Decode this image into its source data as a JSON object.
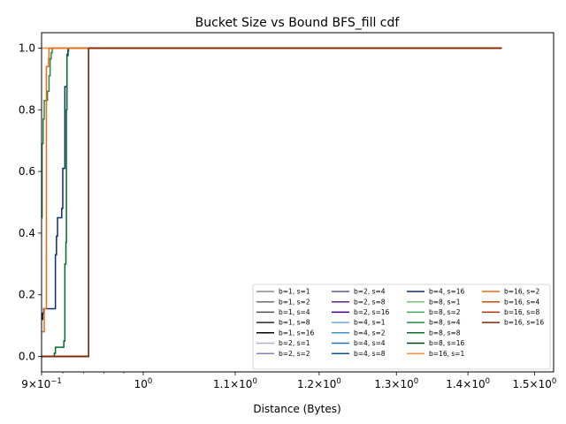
{
  "chart_data": {
    "type": "line",
    "title": "Bucket Size vs Bound BFS_fill cdf",
    "xlabel": "Distance (Bytes)",
    "ylabel": "",
    "x_scale": "log",
    "xlim": [
      0.9,
      1.53
    ],
    "ylim": [
      -0.05,
      1.05
    ],
    "grid": false,
    "legend_placement": "lower-right",
    "legend_columns": 4,
    "x_ticks": [
      {
        "value": 0.9,
        "base": "9",
        "times": "×",
        "power": "10",
        "exp": "−1"
      },
      {
        "value": 1.0,
        "base": "",
        "times": "",
        "power": "10",
        "exp": "0"
      },
      {
        "value": 1.1,
        "base": "1.1",
        "times": "×",
        "power": "10",
        "exp": "0"
      },
      {
        "value": 1.2,
        "base": "1.2",
        "times": "×",
        "power": "10",
        "exp": "0"
      },
      {
        "value": 1.3,
        "base": "1.3",
        "times": "×",
        "power": "10",
        "exp": "0"
      },
      {
        "value": 1.4,
        "base": "1.4",
        "times": "×",
        "power": "10",
        "exp": "0"
      },
      {
        "value": 1.5,
        "base": "1.5",
        "times": "×",
        "power": "10",
        "exp": "0"
      }
    ],
    "y_ticks": [
      {
        "value": 0.0,
        "label": "0.0"
      },
      {
        "value": 0.2,
        "label": "0.2"
      },
      {
        "value": 0.4,
        "label": "0.4"
      },
      {
        "value": 0.6,
        "label": "0.6"
      },
      {
        "value": 0.8,
        "label": "0.8"
      },
      {
        "value": 1.0,
        "label": "1.0"
      }
    ],
    "series": [
      {
        "name": "b=1, s=1",
        "color": "#8c8c8c",
        "x": [
          0.9,
          0.945,
          0.945,
          1.45
        ],
        "y": [
          0,
          0,
          1,
          1
        ]
      },
      {
        "name": "b=1, s=2",
        "color": "#6e6e6e",
        "x": [
          0.9,
          0.945,
          0.945,
          1.45
        ],
        "y": [
          0,
          0,
          1,
          1
        ]
      },
      {
        "name": "b=1, s=4",
        "color": "#4f4f4f",
        "x": [
          0.9,
          0.945,
          0.945,
          1.45
        ],
        "y": [
          0,
          0,
          1,
          1
        ]
      },
      {
        "name": "b=1, s=8",
        "color": "#262626",
        "x": [
          0.9,
          0.945,
          0.945,
          1.45
        ],
        "y": [
          0,
          0,
          1,
          1
        ]
      },
      {
        "name": "b=1, s=16",
        "color": "#000000",
        "x": [
          0.9,
          0.945,
          0.945,
          1.45
        ],
        "y": [
          0,
          0,
          1,
          1
        ]
      },
      {
        "name": "b=2, s=1",
        "color": "#b2abd2",
        "x": [
          0.9,
          0.945,
          0.945,
          1.45
        ],
        "y": [
          0,
          0,
          1,
          1
        ]
      },
      {
        "name": "b=2, s=2",
        "color": "#8e7cc3",
        "x": [
          0.9,
          0.945,
          0.945,
          1.45
        ],
        "y": [
          0,
          0,
          1,
          1
        ]
      },
      {
        "name": "b=2, s=4",
        "color": "#6a51a3",
        "x": [
          0.9,
          0.945,
          0.945,
          1.45
        ],
        "y": [
          0,
          0,
          1,
          1
        ]
      },
      {
        "name": "b=2, s=8",
        "color": "#54278f",
        "x": [
          0.9,
          0.945,
          0.945,
          1.45
        ],
        "y": [
          0,
          0,
          1,
          1
        ]
      },
      {
        "name": "b=2, s=16",
        "color": "#3f007d",
        "x": [
          0.9,
          0.945,
          0.945,
          1.45
        ],
        "y": [
          0,
          0,
          1,
          1
        ]
      },
      {
        "name": "b=4, s=1",
        "color": "#6baed6",
        "x": [
          0.9,
          0.945,
          0.945,
          1.45
        ],
        "y": [
          0,
          0,
          1,
          1
        ]
      },
      {
        "name": "b=4, s=2",
        "color": "#4292c6",
        "x": [
          0.9,
          0.945,
          0.945,
          1.45
        ],
        "y": [
          0,
          0,
          1,
          1
        ]
      },
      {
        "name": "b=4, s=4",
        "color": "#2171b5",
        "x": [
          0.9,
          0.945,
          0.945,
          1.45
        ],
        "y": [
          0,
          0,
          1,
          1
        ]
      },
      {
        "name": "b=4, s=8",
        "color": "#08519c",
        "x": [
          0.9,
          0.945,
          0.945,
          1.45
        ],
        "y": [
          0,
          0,
          1,
          1
        ]
      },
      {
        "name": "b=4, s=16",
        "color": "#08306b",
        "x": [
          0.9,
          0.901,
          0.901,
          0.902,
          0.902,
          0.913,
          0.913,
          0.914,
          0.914,
          0.915,
          0.915,
          0.919,
          0.919,
          0.92,
          0.92,
          0.922,
          0.922,
          0.924,
          0.924,
          0.925,
          0.925,
          0.945,
          0.945,
          1.45
        ],
        "y": [
          0.12,
          0.12,
          0.14,
          0.14,
          0.155,
          0.155,
          0.33,
          0.33,
          0.39,
          0.39,
          0.45,
          0.45,
          0.48,
          0.48,
          0.61,
          0.61,
          0.875,
          0.875,
          0.98,
          0.98,
          1.0,
          1.0,
          1.0,
          1.0
        ]
      },
      {
        "name": "b=8, s=1",
        "color": "#74c476",
        "x": [
          0.9,
          0.945,
          0.945,
          1.45
        ],
        "y": [
          0,
          0,
          1,
          1
        ]
      },
      {
        "name": "b=8, s=2",
        "color": "#41ab5d",
        "x": [
          0.9,
          0.945,
          0.945,
          1.45
        ],
        "y": [
          0,
          0,
          1,
          1
        ]
      },
      {
        "name": "b=8, s=4",
        "color": "#238b45",
        "x": [
          0.9,
          0.9005,
          0.9005,
          0.9015,
          0.9015,
          0.9025,
          0.9025,
          0.9035,
          0.9035,
          0.9055,
          0.9055,
          0.907,
          0.907,
          0.908,
          0.908,
          0.909,
          0.909,
          0.91,
          0.91,
          0.945,
          0.945,
          1.45
        ],
        "y": [
          0.45,
          0.45,
          0.69,
          0.69,
          0.77,
          0.77,
          0.83,
          0.83,
          0.83,
          0.83,
          0.86,
          0.86,
          0.91,
          0.91,
          0.965,
          0.965,
          0.985,
          0.985,
          1.0,
          1.0,
          1.0,
          1.0
        ]
      },
      {
        "name": "b=8, s=8",
        "color": "#006d2c",
        "x": [
          0.9,
          0.912,
          0.912,
          0.913,
          0.913,
          0.921,
          0.921,
          0.922,
          0.922,
          0.923,
          0.923,
          0.9235,
          0.9235,
          0.924,
          0.924,
          0.925,
          0.925,
          0.9255,
          0.9255,
          0.945,
          0.945,
          1.45
        ],
        "y": [
          0,
          0,
          0.01,
          0.01,
          0.03,
          0.03,
          0.05,
          0.05,
          0.3,
          0.3,
          0.37,
          0.37,
          0.8,
          0.8,
          0.975,
          0.975,
          0.99,
          0.99,
          1.0,
          1.0,
          1.0,
          1.0
        ]
      },
      {
        "name": "b=8, s=16",
        "color": "#00441b",
        "x": [
          0.9,
          0.945,
          0.945,
          1.45
        ],
        "y": [
          0,
          0,
          1,
          1
        ]
      },
      {
        "name": "b=16, s=1",
        "color": "#fd8d3c",
        "x": [
          0.9,
          0.91,
          0.91,
          1.45
        ],
        "y": [
          1.0,
          1.0,
          1.0,
          1.0
        ]
      },
      {
        "name": "b=16, s=2",
        "color": "#f16913",
        "x": [
          0.9,
          0.9025,
          0.9025,
          0.9045,
          0.9045,
          0.9055,
          0.9055,
          0.9065,
          0.9065,
          0.907,
          0.907,
          0.945,
          0.945,
          1.45
        ],
        "y": [
          0.08,
          0.08,
          0.155,
          0.155,
          0.94,
          0.94,
          0.94,
          0.94,
          0.965,
          0.965,
          1.0,
          1.0,
          1.0,
          1.0
        ]
      },
      {
        "name": "b=16, s=4",
        "color": "#d94801",
        "x": [
          0.9,
          0.945,
          0.945,
          1.45
        ],
        "y": [
          0,
          0,
          1,
          1
        ]
      },
      {
        "name": "b=16, s=8",
        "color": "#a63603",
        "x": [
          0.9,
          0.945,
          0.945,
          1.45
        ],
        "y": [
          0,
          0,
          1,
          1
        ]
      },
      {
        "name": "b=16, s=16",
        "color": "#7f2704",
        "x": [
          0.9,
          0.945,
          0.945,
          1.45
        ],
        "y": [
          0,
          0,
          1,
          1
        ]
      }
    ]
  }
}
